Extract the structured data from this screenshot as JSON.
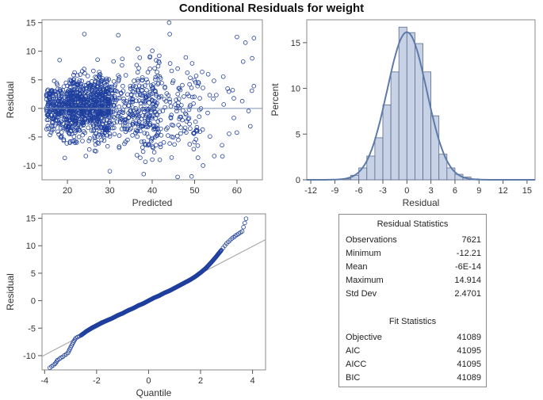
{
  "title": "Conditional Residuals for weight",
  "colors": {
    "marker": "#1f3f9e",
    "bar_fill": "#c7d2e6",
    "bar_stroke": "#5a6a8a",
    "curve": "#5d7aa8",
    "ref_line": "#aaaaaa"
  },
  "chart_data": [
    {
      "type": "scatter",
      "name": "residual-vs-predicted",
      "xlabel": "Predicted",
      "ylabel": "Residual",
      "xlim": [
        14,
        66
      ],
      "ylim": [
        -12.5,
        15.5
      ],
      "xticks": [
        20,
        30,
        40,
        50,
        60
      ],
      "yticks": [
        -10,
        -5,
        0,
        5,
        10,
        15
      ],
      "reference_line_y": 0,
      "marker": "open-circle",
      "n_observations": 7621,
      "notable_points": [
        [
          44,
          15
        ],
        [
          24,
          13
        ],
        [
          32,
          12.8
        ],
        [
          60,
          12.5
        ],
        [
          64,
          12.3
        ],
        [
          62,
          11.5
        ],
        [
          46,
          -12
        ],
        [
          38,
          -11.5
        ],
        [
          52,
          -10
        ],
        [
          30,
          -11
        ]
      ],
      "grid": false
    },
    {
      "type": "bar",
      "name": "residual-histogram",
      "xlabel": "Residual",
      "ylabel": "Percent",
      "xticks": [
        -12,
        -9,
        -6,
        -3,
        0,
        3,
        6,
        9,
        12,
        15
      ],
      "yticks": [
        0,
        5,
        10,
        15
      ],
      "xlim": [
        -12.5,
        16
      ],
      "ylim": [
        0,
        17.5
      ],
      "bin_width": 1.0,
      "bins_left": [
        -8,
        -7,
        -6,
        -5,
        -4,
        -3,
        -2,
        -1,
        0,
        1,
        2,
        3,
        4,
        5,
        6,
        7,
        8
      ],
      "values": [
        0.1,
        0.5,
        1.3,
        2.6,
        4.6,
        8.2,
        11.8,
        16.7,
        16.1,
        14.9,
        11.8,
        7.0,
        2.8,
        1.3,
        0.6,
        0.3,
        0.1
      ],
      "overlay": "normal density curve",
      "grid": false
    },
    {
      "type": "scatter",
      "name": "residual-qq-plot",
      "xlabel": "Quantile",
      "ylabel": "Residual",
      "xlim": [
        -4.1,
        4.5
      ],
      "ylim": [
        -12.6,
        15.8
      ],
      "xticks": [
        -4,
        -2,
        0,
        2,
        4
      ],
      "yticks": [
        -10,
        -5,
        0,
        5,
        10,
        15
      ],
      "reference_line": {
        "intercept": 0,
        "slope": 2.4701
      },
      "qq_points": [
        [
          -3.8,
          -12.21
        ],
        [
          -3.6,
          -11.5
        ],
        [
          -3.5,
          -10.8
        ],
        [
          -3.3,
          -10.2
        ],
        [
          -3.1,
          -9.5
        ],
        [
          -3.0,
          -8.5
        ],
        [
          -2.9,
          -7.6
        ],
        [
          -2.8,
          -6.8
        ],
        [
          -2.6,
          -6.3
        ],
        [
          -2.4,
          -5.6
        ],
        [
          -2.2,
          -5.0
        ],
        [
          -2.0,
          -4.5
        ],
        [
          -1.8,
          -4.0
        ],
        [
          -1.6,
          -3.6
        ],
        [
          -1.4,
          -3.2
        ],
        [
          -1.2,
          -2.7
        ],
        [
          -1.0,
          -2.3
        ],
        [
          -0.8,
          -1.8
        ],
        [
          -0.6,
          -1.4
        ],
        [
          -0.4,
          -0.9
        ],
        [
          -0.2,
          -0.5
        ],
        [
          0.0,
          0.0
        ],
        [
          0.2,
          0.5
        ],
        [
          0.4,
          0.9
        ],
        [
          0.6,
          1.4
        ],
        [
          0.8,
          1.8
        ],
        [
          1.0,
          2.3
        ],
        [
          1.2,
          2.8
        ],
        [
          1.4,
          3.3
        ],
        [
          1.6,
          3.8
        ],
        [
          1.8,
          4.4
        ],
        [
          2.0,
          5.1
        ],
        [
          2.2,
          5.9
        ],
        [
          2.4,
          6.9
        ],
        [
          2.6,
          8.0
        ],
        [
          2.8,
          9.2
        ],
        [
          3.0,
          10.4
        ],
        [
          3.2,
          11.3
        ],
        [
          3.4,
          12.0
        ],
        [
          3.6,
          12.6
        ],
        [
          3.75,
          14.914
        ]
      ],
      "grid": false
    }
  ],
  "residual_statistics": {
    "heading": "Residual Statistics",
    "rows": [
      {
        "label": "Observations",
        "value": "7621"
      },
      {
        "label": "Minimum",
        "value": "-12.21"
      },
      {
        "label": "Mean",
        "value": "-6E-14"
      },
      {
        "label": "Maximum",
        "value": "14.914"
      },
      {
        "label": "Std Dev",
        "value": "2.4701"
      }
    ]
  },
  "fit_statistics": {
    "heading": "Fit Statistics",
    "rows": [
      {
        "label": "Objective",
        "value": "41089"
      },
      {
        "label": "AIC",
        "value": "41095"
      },
      {
        "label": "AICC",
        "value": "41095"
      },
      {
        "label": "BIC",
        "value": "41089"
      }
    ]
  }
}
